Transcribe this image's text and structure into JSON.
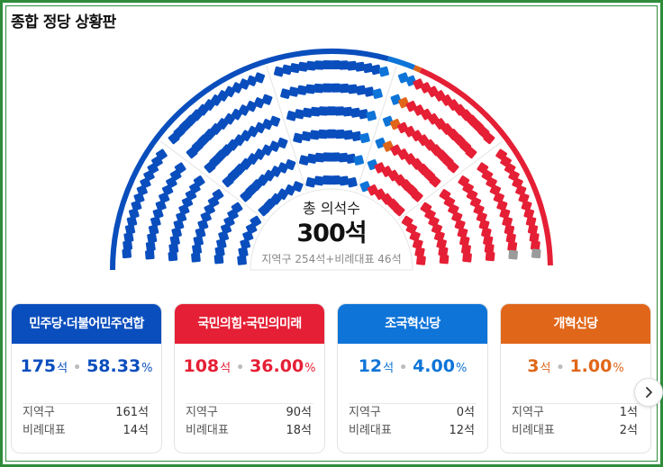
{
  "title": "종합 정당 상황판",
  "total": {
    "label": "총 의석수",
    "seats": "300석",
    "breakdown": "지역구 254석+비례대표 46석"
  },
  "colors": {
    "democratic": "#0a4ebd",
    "ppp": "#e51f35",
    "rebuilding": "#0e74d8",
    "reform": "#e0661a",
    "other": "#9b9b9b"
  },
  "chart_data": {
    "type": "parliament",
    "total": 300,
    "parties": [
      {
        "name": "민주당·더불어민주연합",
        "seats": 175,
        "color": "#0a4ebd"
      },
      {
        "name": "조국혁신당",
        "seats": 12,
        "color": "#0e74d8"
      },
      {
        "name": "개혁신당",
        "seats": 3,
        "color": "#e0661a"
      },
      {
        "name": "국민의힘·국민의미래",
        "seats": 108,
        "color": "#e51f35"
      }
    ]
  },
  "cards": [
    {
      "name": "민주당·더불어민주연합",
      "color": "#0a4ebd",
      "seats": "175",
      "seat_unit": "석",
      "pct": "58.33",
      "pct_unit": "%",
      "district_label": "지역구",
      "district_value": "161석",
      "prop_label": "비례대표",
      "prop_value": "14석"
    },
    {
      "name": "국민의힘·국민의미래",
      "color": "#e51f35",
      "seats": "108",
      "seat_unit": "석",
      "pct": "36.00",
      "pct_unit": "%",
      "district_label": "지역구",
      "district_value": "90석",
      "prop_label": "비례대표",
      "prop_value": "18석"
    },
    {
      "name": "조국혁신당",
      "color": "#0e74d8",
      "seats": "12",
      "seat_unit": "석",
      "pct": "4.00",
      "pct_unit": "%",
      "district_label": "지역구",
      "district_value": "0석",
      "prop_label": "비례대표",
      "prop_value": "12석"
    },
    {
      "name": "개혁신당",
      "color": "#e0661a",
      "seats": "3",
      "seat_unit": "석",
      "pct": "1.00",
      "pct_unit": "%",
      "district_label": "지역구",
      "district_value": "1석",
      "prop_label": "비례대표",
      "prop_value": "2석"
    }
  ],
  "next_icon": "chevron-right-icon"
}
